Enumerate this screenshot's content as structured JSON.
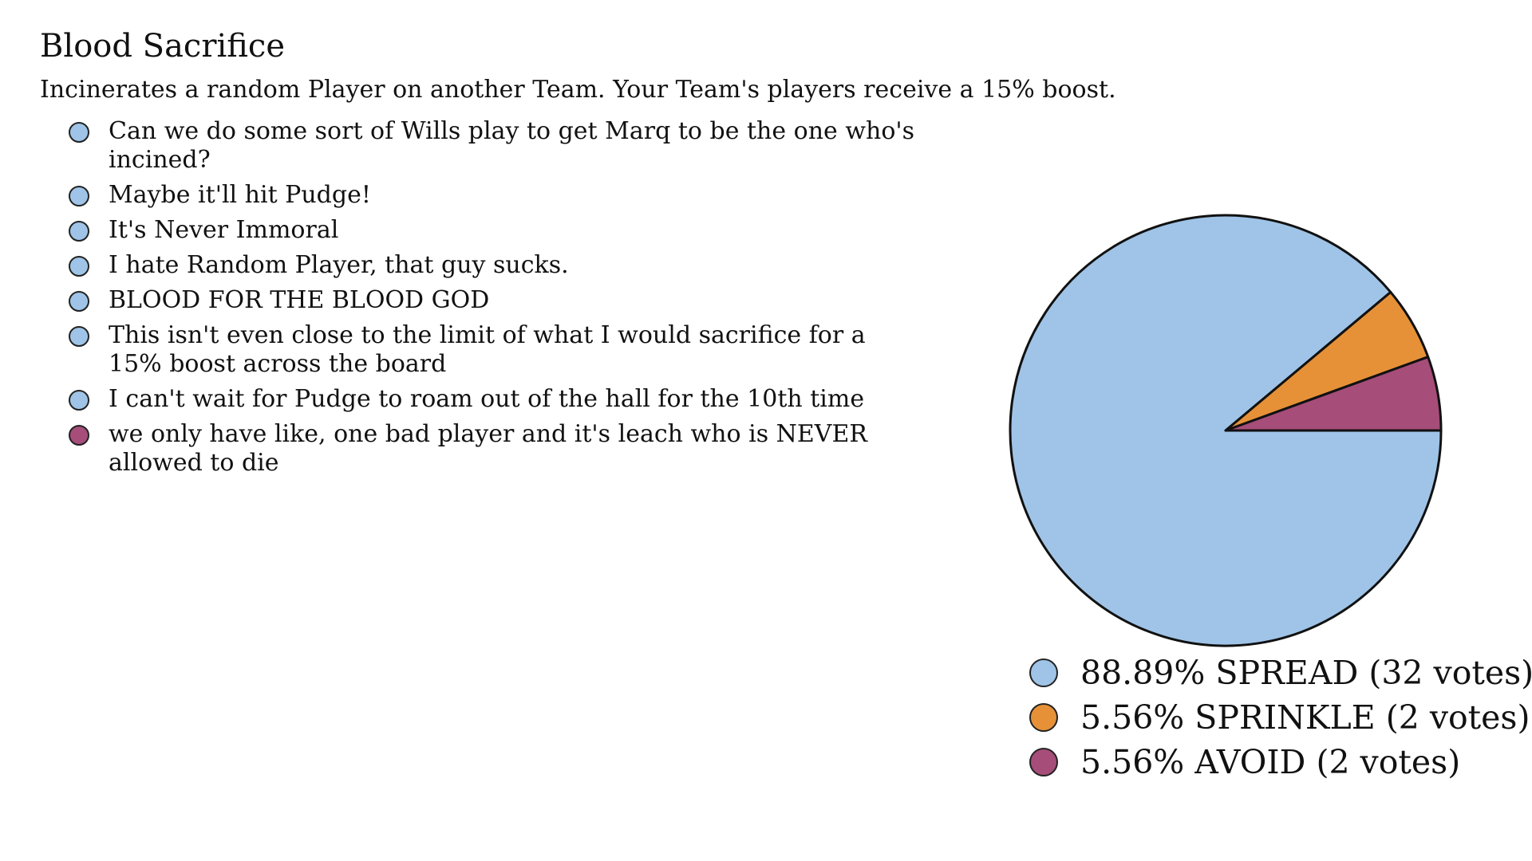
{
  "title": "Blood Sacrifice",
  "description": "Incinerates a random Player on another Team. Your Team's players receive a 15% boost.",
  "comments": [
    {
      "text": "Can we do some sort of Wills play to get Marq to be the one who's incined?",
      "color": "#9fc4e7"
    },
    {
      "text": "Maybe it'll hit Pudge!",
      "color": "#9fc4e7"
    },
    {
      "text": "It's Never Immoral",
      "color": "#9fc4e7"
    },
    {
      "text": "I hate Random Player, that guy sucks.",
      "color": "#9fc4e7"
    },
    {
      "text": "BLOOD FOR THE BLOOD GOD",
      "color": "#9fc4e7"
    },
    {
      "text": "This isn't even close to the limit of what I would sacrifice for a 15% boost across the board",
      "color": "#9fc4e7"
    },
    {
      "text": "I can't wait for Pudge to roam out of the hall for the 10th time",
      "color": "#9fc4e7"
    },
    {
      "text": "we only have like, one bad player and it's leach who is NEVER allowed to die",
      "color": "#a64d79"
    }
  ],
  "chart_data": {
    "type": "pie",
    "categories": [
      "SPREAD",
      "SPRINKLE",
      "AVOID"
    ],
    "values": [
      32,
      2,
      2
    ],
    "percentages": [
      "88.89%",
      "5.56%",
      "5.56%"
    ],
    "colors": [
      "#9fc4e7",
      "#e69138",
      "#a64d79"
    ],
    "legend": [
      "88.89% SPREAD (32 votes)",
      "5.56% SPRINKLE (2 votes)",
      "5.56% AVOID (2 votes)"
    ],
    "legend_position": "bottom"
  }
}
